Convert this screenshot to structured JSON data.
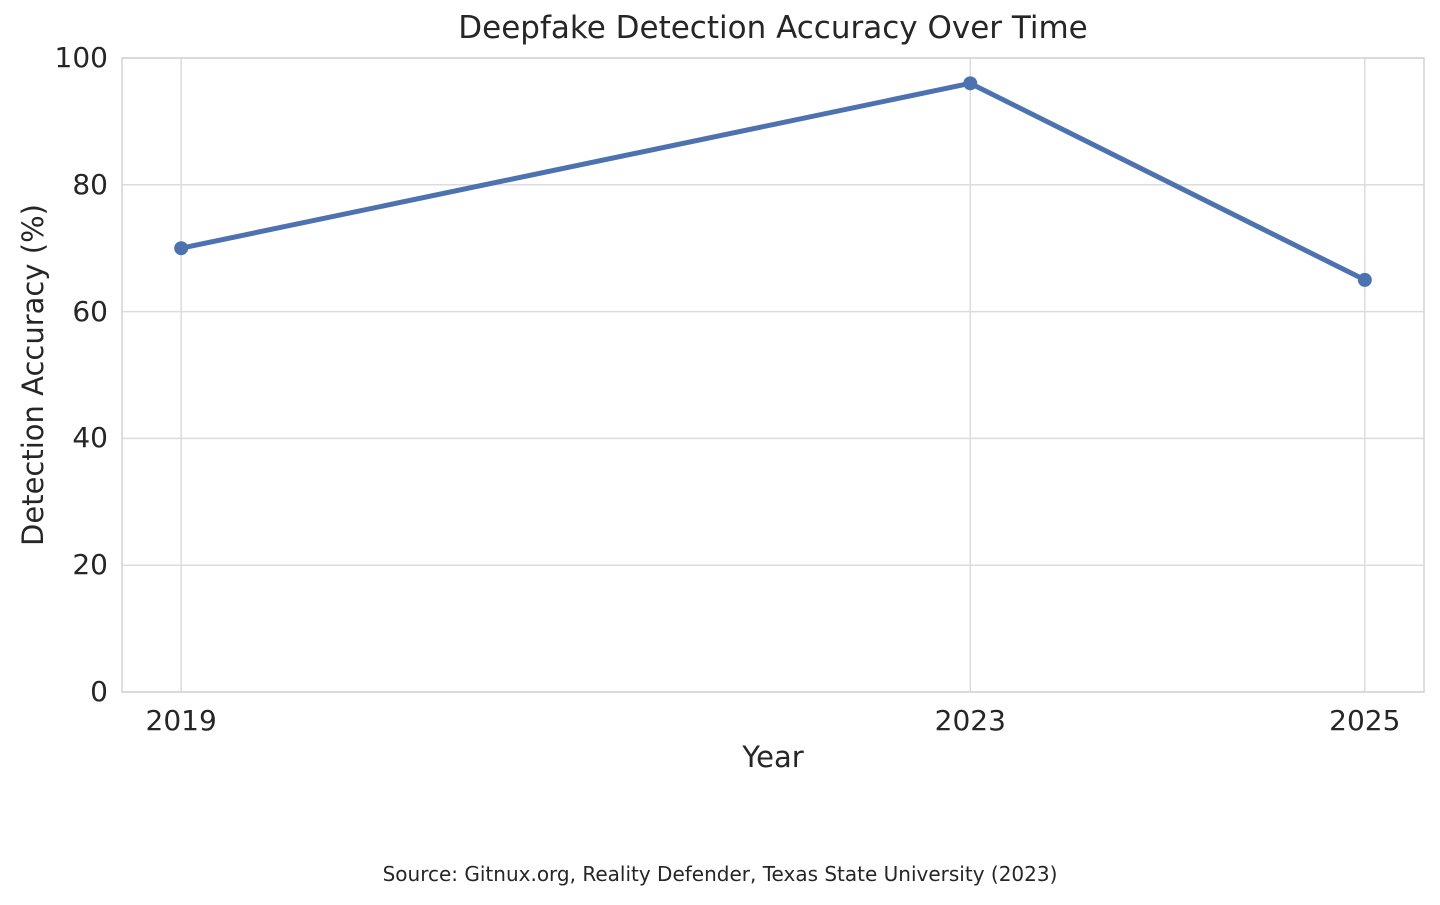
{
  "source": "Source: Gitnux.org, Reality Defender, Texas State University (2023)",
  "chart_data": {
    "type": "line",
    "title": "Deepfake Detection Accuracy Over Time",
    "xlabel": "Year",
    "ylabel": "Detection Accuracy (%)",
    "series": [
      {
        "name": "Detection Accuracy",
        "x": [
          2019,
          2023,
          2025
        ],
        "values": [
          70,
          96,
          65
        ]
      }
    ],
    "xticks": [
      2019,
      2023,
      2025
    ],
    "yticks": [
      0,
      20,
      40,
      60,
      80,
      100
    ],
    "xlim": [
      2018.7,
      2025.3
    ],
    "ylim": [
      0,
      100
    ],
    "grid": true,
    "legend": "none",
    "colors": {
      "line": "#4C72B0",
      "marker": "#4C72B0",
      "grid": "#dcdcdc",
      "spine": "#d4d4d4",
      "text": "#262626",
      "background": "#ffffff"
    }
  }
}
